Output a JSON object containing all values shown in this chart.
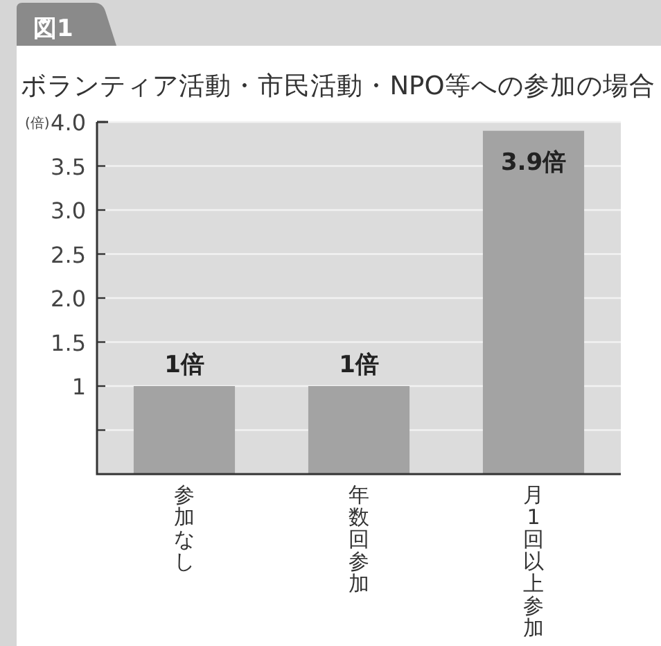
{
  "chart_data": {
    "type": "bar",
    "title": "ボランティア活動・市民活動・NPO等への参加の場合",
    "annotations": [
      "図1"
    ],
    "ylabel": "(倍)",
    "categories": [
      "参加なし",
      "年数回参加",
      "月1回以上参加"
    ],
    "values": [
      1,
      1,
      3.9
    ],
    "value_labels": [
      "1倍",
      "1倍",
      "3.9倍"
    ],
    "color": "#a3a3a3",
    "ylim": [
      0,
      4
    ],
    "yticks": [
      {
        "value": 0.5,
        "label": null
      },
      1,
      1.5,
      {
        "value": 2,
        "label": "2.0"
      },
      2.5,
      {
        "value": 3,
        "label": "3.0"
      },
      3.5,
      {
        "value": 4,
        "label": "4.0"
      }
    ],
    "grid": "y"
  }
}
